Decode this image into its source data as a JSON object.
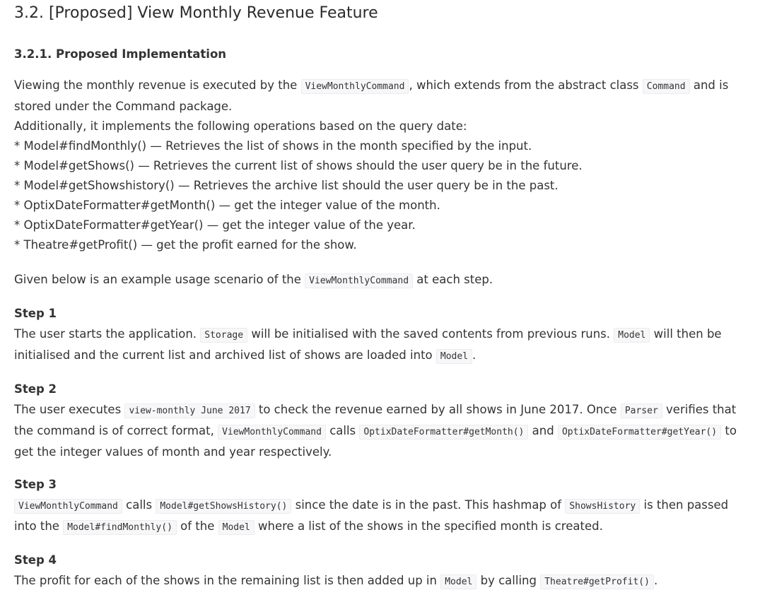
{
  "title": "3.2. [Proposed] View Monthly Revenue Feature",
  "subtitle": "3.2.1. Proposed Implementation",
  "intro": {
    "t1": "Viewing the monthly revenue is executed by the",
    "c1": "ViewMonthlyCommand",
    "t2": ", which extends from the abstract class",
    "c2": "Command",
    "t3": "and is stored under the Command package.",
    "t4": "Additionally, it implements the following operations based on the query date:",
    "bullets": [
      "* Model#findMonthly() — Retrieves the list of shows in the month specified by the input.",
      "* Model#getShows() — Retrieves the current list of shows should the user query be in the future.",
      "* Model#getShowshistory() — Retrieves the archive list should the user query be in the past.",
      "* OptixDateFormatter#getMonth() — get the integer value of the month.",
      "* OptixDateFormatter#getYear() — get the integer value of the year.",
      "* Theatre#getProfit() — get the profit earned for the show."
    ]
  },
  "example": {
    "t1": "Given below is an example usage scenario of the",
    "c1": "ViewMonthlyCommand",
    "t2": "at each step."
  },
  "step1": {
    "heading": "Step 1",
    "t1": "The user starts the application.",
    "c1": "Storage",
    "t2": "will be initialised with the saved contents from previous runs.",
    "c2": "Model",
    "t3": "will then be initialised and the current list and archived list of shows are loaded into",
    "c3": "Model",
    "t4": "."
  },
  "step2": {
    "heading": "Step 2",
    "t1": "The user executes",
    "c1": "view-monthly June 2017",
    "t2": "to check the revenue earned by all shows in June 2017. Once",
    "c2": "Parser",
    "t3": "verifies that the command is of correct format,",
    "c3": "ViewMonthlyCommand",
    "t4": "calls",
    "c4": "OptixDateFormatter#getMonth()",
    "t5": "and",
    "c5": "OptixDateFormatter#getYear()",
    "t6": "to get the integer values of month and year respectively."
  },
  "step3": {
    "heading": "Step 3",
    "c1": "ViewMonthlyCommand",
    "t1": "calls",
    "c2": "Model#getShowsHistory()",
    "t2": "since the date is in the past. This hashmap of",
    "c3": "ShowsHistory",
    "t3": "is then passed into the",
    "c4": "Model#findMonthly()",
    "t4": "of the",
    "c5": "Model",
    "t5": "where a list of the shows in the specified month is created."
  },
  "step4": {
    "heading": "Step 4",
    "t1": "The profit for each of the shows in the remaining list is then added up in",
    "c1": "Model",
    "t2": "by calling",
    "c2": "Theatre#getProfit()",
    "t3": "."
  }
}
